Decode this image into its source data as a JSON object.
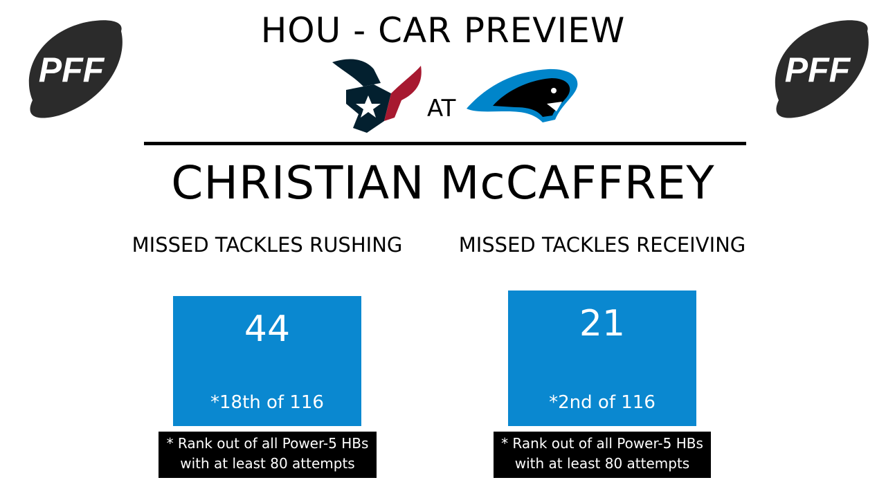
{
  "header": {
    "title": "HOU - CAR PREVIEW",
    "at_label": "AT",
    "logo_text": "PFF",
    "away_team_logo": "houston-texans-bull-logo",
    "home_team_logo": "carolina-panthers-logo"
  },
  "player": {
    "name": "CHRISTIAN McCAFFREY"
  },
  "stats": [
    {
      "label": "MISSED TACKLES RUSHING",
      "value": "44",
      "rank": "*18th of 116",
      "note_line1": "* Rank out of all Power-5 HBs",
      "note_line2": "with at least 80 attempts"
    },
    {
      "label": "MISSED TACKLES RECEIVING",
      "value": "21",
      "rank": "*2nd of 116",
      "note_line1": "* Rank out of all Power-5 HBs",
      "note_line2": "with at least 80 attempts"
    }
  ],
  "colors": {
    "stat_box": "#0a88d0",
    "texans_navy": "#03202f",
    "texans_red": "#a71930",
    "panthers_blue": "#0085ca",
    "logo_dark": "#2b2b2b"
  }
}
